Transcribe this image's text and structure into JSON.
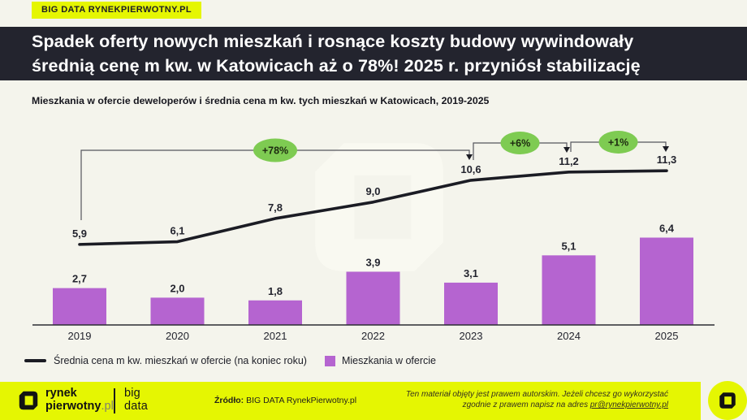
{
  "badge": {
    "label": "BIG DATA RYNEKPIERWOTNY.PL"
  },
  "title": {
    "line1": "Spadek oferty nowych mieszkań i rosnące koszty budowy wywindowały",
    "line2": "średnią cenę m kw. w Katowicach aż o 78%! 2025 r. przyniósł stabilizację"
  },
  "subtitle": "Mieszkania w ofercie deweloperów i średnia cena m kw. tych mieszkań w Katowicach, 2019-2025",
  "chart_data": {
    "type": "bar",
    "categories": [
      "2019",
      "2020",
      "2021",
      "2022",
      "2023",
      "2024",
      "2025"
    ],
    "series": [
      {
        "name": "Średnia cena m kw. mieszkań w ofercie (na koniec roku)",
        "type": "line",
        "values": [
          5.9,
          6.1,
          7.8,
          9.0,
          10.6,
          11.2,
          11.3
        ],
        "labels": [
          "5,9",
          "6,1",
          "7,8",
          "9,0",
          "10,6",
          "11,2",
          "11,3"
        ],
        "color": "#1b1c24"
      },
      {
        "name": "Mieszkania w ofercie",
        "type": "bar",
        "values": [
          2.7,
          2.0,
          1.8,
          3.9,
          3.1,
          5.1,
          6.4
        ],
        "labels": [
          "2,7",
          "2,0",
          "1,8",
          "3,9",
          "3,1",
          "5,1",
          "6,4"
        ],
        "color": "#b564d0"
      }
    ],
    "annotations": [
      {
        "label": "+78%",
        "from": "2019",
        "to": "2023"
      },
      {
        "label": "+6%",
        "from": "2023",
        "to": "2024"
      },
      {
        "label": "+1%",
        "from": "2024",
        "to": "2025"
      }
    ],
    "annotation_color": "#7ecb52",
    "title": "Mieszkania w ofercie deweloperów i średnia cena m kw. tych mieszkań w Katowicach, 2019-2025",
    "xlabel": "",
    "ylabel": "",
    "ylim": [
      0,
      13
    ],
    "grid": false,
    "legend_position": "bottom"
  },
  "legend": {
    "line_label": "Średnia cena m kw. mieszkań w ofercie (na koniec roku)",
    "bar_label": "Mieszkania w ofercie"
  },
  "footer": {
    "brand_line1": "rynek",
    "brand_line2_bold": "pierwotny",
    "brand_line2_suffix": ".pl",
    "bigdata_line1": "big",
    "bigdata_line2": "data",
    "source_label": "Źródło:",
    "source_value": "BIG DATA RynekPierwotny.pl",
    "copyright_line1": "Ten materiał objęty jest prawem autorskim. Jeżeli chcesz go wykorzystać",
    "copyright_line2_prefix": "zgodnie z prawem napisz na adres ",
    "copyright_email": "pr@rynekpierwotny.pl"
  },
  "colors": {
    "yellow": "#e5f602",
    "purple": "#b564d0",
    "green": "#7ecb52",
    "dark": "#23242e",
    "cream": "#f4f4ec"
  }
}
